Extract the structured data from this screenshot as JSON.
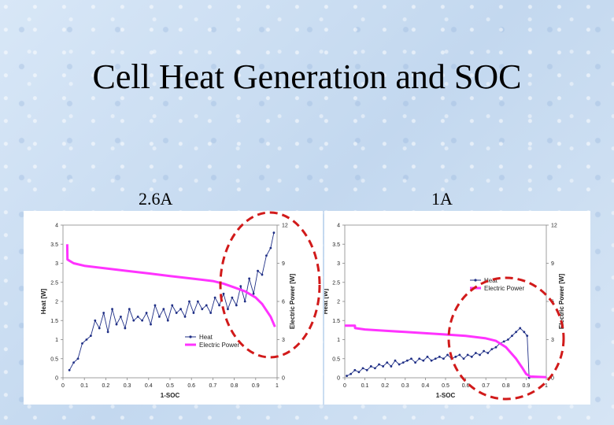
{
  "slide": {
    "title": "Cell Heat Generation and SOC",
    "left_caption": "2.6A",
    "right_caption": "1A"
  },
  "colors": {
    "heat": "#1f2f86",
    "power": "#ff33ff",
    "ellipse": "#d11a1a"
  },
  "chart_data": [
    {
      "type": "line",
      "xlabel": "1-SOC",
      "ylabel": "Heat [W]",
      "y2label": "Electric Power [W]",
      "xlim": [
        0,
        1
      ],
      "ylim": [
        0,
        4
      ],
      "y2lim": [
        0,
        12
      ],
      "xticks": [
        "0",
        "0.1",
        "0.2",
        "0.3",
        "0.4",
        "0.5",
        "0.6",
        "0.7",
        "0.8",
        "0.9",
        "1"
      ],
      "yticks": [
        "0",
        "0.5",
        "1",
        "1.5",
        "2",
        "2.5",
        "3",
        "3.5",
        "4"
      ],
      "y2ticks": [
        "0",
        "3",
        "6",
        "9",
        "12"
      ],
      "legend": "bottom-right",
      "series": [
        {
          "name": "Heat",
          "axis": "left",
          "x": [
            0.03,
            0.05,
            0.07,
            0.09,
            0.11,
            0.13,
            0.15,
            0.17,
            0.19,
            0.21,
            0.23,
            0.25,
            0.27,
            0.29,
            0.31,
            0.33,
            0.35,
            0.37,
            0.39,
            0.41,
            0.43,
            0.45,
            0.47,
            0.49,
            0.51,
            0.53,
            0.55,
            0.57,
            0.59,
            0.61,
            0.63,
            0.65,
            0.67,
            0.69,
            0.71,
            0.73,
            0.75,
            0.77,
            0.79,
            0.81,
            0.83,
            0.85,
            0.87,
            0.89,
            0.91,
            0.93,
            0.95,
            0.97,
            0.985
          ],
          "y": [
            0.2,
            0.4,
            0.5,
            0.9,
            1.0,
            1.1,
            1.5,
            1.3,
            1.7,
            1.2,
            1.8,
            1.4,
            1.6,
            1.3,
            1.8,
            1.5,
            1.6,
            1.5,
            1.7,
            1.4,
            1.9,
            1.6,
            1.8,
            1.5,
            1.9,
            1.7,
            1.8,
            1.6,
            2.0,
            1.7,
            2.0,
            1.8,
            1.9,
            1.7,
            2.1,
            1.9,
            2.2,
            1.8,
            2.1,
            1.9,
            2.4,
            2.0,
            2.6,
            2.2,
            2.8,
            2.7,
            3.2,
            3.4,
            3.8
          ]
        },
        {
          "name": "Electric Power",
          "axis": "right",
          "x": [
            0.02,
            0.021,
            0.03,
            0.05,
            0.1,
            0.2,
            0.3,
            0.4,
            0.5,
            0.6,
            0.7,
            0.75,
            0.8,
            0.85,
            0.9,
            0.93,
            0.95,
            0.97,
            0.99
          ],
          "y": [
            10.5,
            9.3,
            9.2,
            9.0,
            8.8,
            8.6,
            8.4,
            8.2,
            8.0,
            7.8,
            7.6,
            7.4,
            7.1,
            6.8,
            6.3,
            5.8,
            5.3,
            4.8,
            4.0
          ]
        }
      ]
    },
    {
      "type": "line",
      "xlabel": "1-SOC",
      "ylabel": "Heat [W]",
      "y2label": "Electric Power [W]",
      "xlim": [
        0,
        1
      ],
      "ylim": [
        0,
        4
      ],
      "y2lim": [
        0,
        12
      ],
      "xticks": [
        "0",
        "0.1",
        "0.2",
        "0.3",
        "0.4",
        "0.5",
        "0.6",
        "0.7",
        "0.8",
        "0.9",
        "1"
      ],
      "yticks": [
        "0",
        "0.5",
        "1",
        "1.5",
        "2",
        "2.5",
        "3",
        "3.5",
        "4"
      ],
      "y2ticks": [
        "0",
        "3",
        "6",
        "9",
        "12"
      ],
      "legend": "center-right",
      "series": [
        {
          "name": "Heat",
          "axis": "left",
          "x": [
            0.01,
            0.03,
            0.05,
            0.07,
            0.09,
            0.11,
            0.13,
            0.15,
            0.17,
            0.19,
            0.21,
            0.23,
            0.25,
            0.27,
            0.29,
            0.31,
            0.33,
            0.35,
            0.37,
            0.39,
            0.41,
            0.43,
            0.45,
            0.47,
            0.49,
            0.51,
            0.53,
            0.55,
            0.57,
            0.59,
            0.61,
            0.63,
            0.65,
            0.67,
            0.69,
            0.71,
            0.73,
            0.75,
            0.77,
            0.79,
            0.81,
            0.83,
            0.85,
            0.87,
            0.89,
            0.905,
            0.915
          ],
          "y": [
            0.05,
            0.1,
            0.2,
            0.15,
            0.25,
            0.2,
            0.3,
            0.25,
            0.35,
            0.3,
            0.4,
            0.3,
            0.45,
            0.35,
            0.4,
            0.45,
            0.5,
            0.4,
            0.5,
            0.45,
            0.55,
            0.45,
            0.5,
            0.55,
            0.5,
            0.6,
            0.5,
            0.55,
            0.6,
            0.5,
            0.6,
            0.55,
            0.65,
            0.6,
            0.7,
            0.65,
            0.75,
            0.8,
            0.9,
            0.95,
            1.0,
            1.1,
            1.2,
            1.3,
            1.2,
            1.1,
            0.0
          ]
        },
        {
          "name": "Electric Power",
          "axis": "right",
          "x": [
            0.0,
            0.05,
            0.051,
            0.1,
            0.2,
            0.3,
            0.4,
            0.5,
            0.6,
            0.7,
            0.75,
            0.8,
            0.85,
            0.88,
            0.9,
            0.92,
            1.0
          ],
          "y": [
            4.1,
            4.1,
            3.9,
            3.8,
            3.7,
            3.6,
            3.5,
            3.4,
            3.3,
            3.1,
            2.9,
            2.4,
            1.5,
            0.8,
            0.3,
            0.1,
            0.05
          ]
        }
      ]
    }
  ]
}
